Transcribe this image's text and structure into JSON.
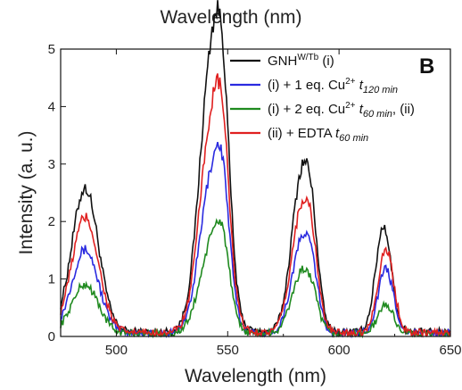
{
  "chart_data": {
    "type": "line",
    "top_label": "Wavelength (nm)",
    "panel_label": "B",
    "xlabel": "Wavelength (nm)",
    "ylabel": "Intensity (a. u.)",
    "xlim": [
      475,
      650
    ],
    "ylim": [
      0,
      5
    ],
    "xticks": [
      500,
      550,
      600,
      650
    ],
    "yticks": [
      0,
      1,
      2,
      3,
      4,
      5
    ],
    "grid": false,
    "legend_position": "top-right",
    "series": [
      {
        "name": "GNHW/Tb (i)",
        "legend": {
          "base": "GNH",
          "sup": "W/Tb",
          "tail": " (i)"
        },
        "color": "#111111",
        "peaks": [
          [
            486,
            2.5,
            6
          ],
          [
            543,
            4.8,
            5.5
          ],
          [
            548,
            1.8,
            3
          ],
          [
            583,
            2.6,
            4.5
          ],
          [
            588,
            1.0,
            3
          ],
          [
            620,
            1.85,
            3.5
          ]
        ],
        "baseline": 0.08,
        "x": [
          475,
          480,
          485,
          490,
          495,
          500,
          505,
          510,
          515,
          520,
          525,
          530,
          535,
          540,
          545,
          550,
          555,
          560,
          565,
          570,
          575,
          580,
          585,
          590,
          595,
          600,
          605,
          610,
          615,
          620,
          625,
          630,
          635,
          640,
          645,
          650
        ],
        "y": [
          0.2,
          1.2,
          2.4,
          2.3,
          1.4,
          0.6,
          0.2,
          0.1,
          0.1,
          0.1,
          0.2,
          0.4,
          1.6,
          4.0,
          4.9,
          3.5,
          1.5,
          0.4,
          0.2,
          0.3,
          1.1,
          2.5,
          2.6,
          1.8,
          0.6,
          0.2,
          0.1,
          0.2,
          0.6,
          1.9,
          1.2,
          0.3,
          0.1,
          0.2,
          0.3,
          0.2
        ]
      },
      {
        "name": "(i) + 1 eq. Cu2+ t120 min",
        "legend": {
          "base": "(i) + 1 eq. Cu",
          "sup": "2+",
          "tail": " ",
          "ital": "t",
          "sub": "120 min"
        },
        "color": "#2a2ae0",
        "peaks": [
          [
            486,
            1.45,
            6
          ],
          [
            543,
            2.7,
            5.5
          ],
          [
            548,
            1.2,
            3
          ],
          [
            583,
            1.5,
            4.5
          ],
          [
            588,
            0.6,
            3
          ],
          [
            621,
            1.1,
            3.5
          ]
        ],
        "baseline": 0.06,
        "x": [
          475,
          485,
          490,
          500,
          530,
          545,
          560,
          583,
          600,
          621,
          650
        ],
        "y": [
          0.1,
          1.4,
          1.3,
          0.3,
          0.3,
          2.8,
          0.3,
          1.5,
          0.1,
          1.1,
          0.2
        ]
      },
      {
        "name": "(i) + 2 eq. Cu2+ t60 min, (ii)",
        "legend": {
          "base": "(i) + 2 eq. Cu",
          "sup": "2+",
          "tail": " ",
          "ital": "t",
          "sub": "60 min",
          "after": ", (ii)"
        },
        "color": "#1f8a1f",
        "peaks": [
          [
            486,
            0.85,
            6
          ],
          [
            543,
            1.55,
            5.5
          ],
          [
            548,
            0.8,
            3
          ],
          [
            583,
            1.0,
            4.5
          ],
          [
            588,
            0.35,
            3
          ],
          [
            621,
            0.5,
            3.5
          ]
        ],
        "baseline": 0.05,
        "x": [
          475,
          486,
          500,
          530,
          545,
          560,
          583,
          600,
          621,
          650
        ],
        "y": [
          0.1,
          0.8,
          0.2,
          0.2,
          1.6,
          0.2,
          1.0,
          0.1,
          0.5,
          0.2
        ]
      },
      {
        "name": "(ii) + EDTA t60 min",
        "legend": {
          "base": "(ii) + EDTA ",
          "sup": "",
          "tail": "",
          "ital": "t",
          "sub": "60 min"
        },
        "color": "#e02020",
        "peaks": [
          [
            486,
            2.0,
            6
          ],
          [
            543,
            3.65,
            5.5
          ],
          [
            548,
            1.5,
            3
          ],
          [
            583,
            2.05,
            4.5
          ],
          [
            588,
            0.8,
            3
          ],
          [
            621,
            1.45,
            3.5
          ]
        ],
        "baseline": 0.07,
        "x": [
          475,
          486,
          500,
          530,
          545,
          560,
          583,
          600,
          621,
          650
        ],
        "y": [
          0.1,
          2.0,
          0.4,
          0.3,
          3.7,
          0.4,
          2.1,
          0.1,
          1.5,
          0.2
        ]
      }
    ]
  }
}
